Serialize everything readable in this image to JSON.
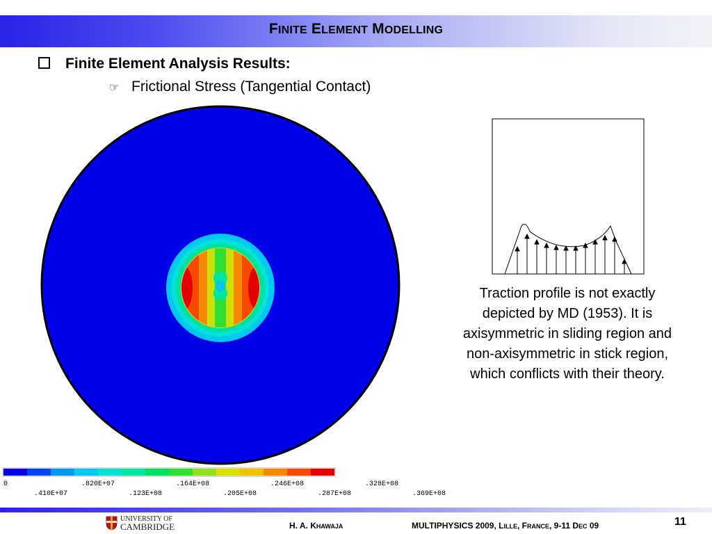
{
  "header": {
    "title_f": "F",
    "title_inite": "INITE",
    "title_e": "E",
    "title_lement": "LEMENT",
    "title_m": "M",
    "title_odelling": "ODELLING"
  },
  "bullets": {
    "level1": "Finite Element  Analysis Results:",
    "level2": "Frictional Stress (Tangential Contact)"
  },
  "colorbar": {
    "colors": [
      "#0000e6",
      "#0044f0",
      "#0099f0",
      "#00c8f0",
      "#00e4d8",
      "#00e6a0",
      "#00e060",
      "#30e030",
      "#8ee020",
      "#d8e000",
      "#f5c000",
      "#f58a00",
      "#f54a00",
      "#e60000"
    ],
    "top_labels": [
      "0",
      ".820E+07",
      ".164E+08",
      ".246E+08",
      ".328E+08"
    ],
    "bottom_labels": [
      ".410E+07",
      ".123E+08",
      ".205E+08",
      ".287E+08",
      ".369E+08"
    ]
  },
  "caption": "Traction profile is not exactly depicted by MD (1953). It is axisymmetric in sliding region and non-axisymmetric in stick region, which conflicts with their theory.",
  "footer": {
    "logo_line1": "UNIVERSITY OF",
    "logo_line2": "CAMBRIDGE",
    "author_prefix": "H. A. K",
    "author_sc": "HAWAJA",
    "conf_a": "MULTIPHYSICS 2009, L",
    "conf_b": "ILLE",
    "conf_c": ", F",
    "conf_d": "RANCE",
    "conf_e": ", 9-11 D",
    "conf_f": "EC",
    "conf_g": " 09",
    "page": "11"
  }
}
